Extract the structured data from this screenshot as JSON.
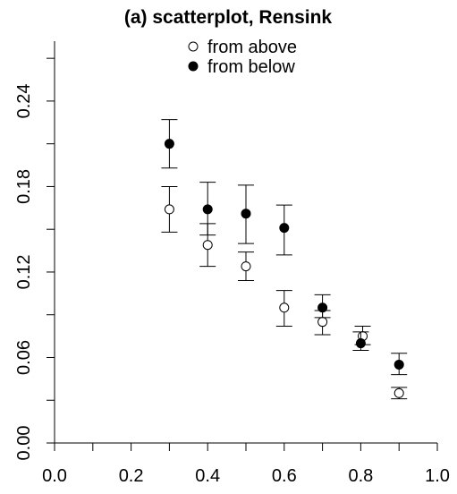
{
  "chart_data": {
    "type": "scatter",
    "title": "(a) scatterplot, Rensink",
    "xlabel": "",
    "ylabel": "",
    "xlim": [
      0.0,
      1.0
    ],
    "ylim": [
      0.0,
      0.3
    ],
    "x_ticks": [
      0.0,
      0.2,
      0.4,
      0.6,
      0.8,
      1.0
    ],
    "x_tick_labels": [
      "0.0",
      "0.2",
      "0.4",
      "0.6",
      "0.8",
      "1.0"
    ],
    "y_ticks": [
      0.0,
      0.06,
      0.12,
      0.18,
      0.24
    ],
    "y_tick_labels": [
      "0.00",
      "0.06",
      "0.12",
      "0.18",
      "0.24"
    ],
    "grid": false,
    "legend_position": "top-center",
    "series": [
      {
        "name": "from above",
        "marker": "open-circle",
        "color": "#000000",
        "points": [
          {
            "x": 0.3,
            "y": 0.164,
            "err_low": 0.148,
            "err_high": 0.18
          },
          {
            "x": 0.4,
            "y": 0.139,
            "err_low": 0.124,
            "err_high": 0.154
          },
          {
            "x": 0.5,
            "y": 0.124,
            "err_low": 0.114,
            "err_high": 0.134
          },
          {
            "x": 0.6,
            "y": 0.095,
            "err_low": 0.082,
            "err_high": 0.107
          },
          {
            "x": 0.7,
            "y": 0.085,
            "err_low": 0.076,
            "err_high": 0.093
          },
          {
            "x": 0.805,
            "y": 0.075,
            "err_low": 0.069,
            "err_high": 0.082
          },
          {
            "x": 0.9,
            "y": 0.035,
            "err_low": 0.031,
            "err_high": 0.039
          }
        ]
      },
      {
        "name": "from below",
        "marker": "filled-circle",
        "color": "#000000",
        "points": [
          {
            "x": 0.3,
            "y": 0.21,
            "err_low": 0.193,
            "err_high": 0.227
          },
          {
            "x": 0.4,
            "y": 0.164,
            "err_low": 0.146,
            "err_high": 0.183
          },
          {
            "x": 0.5,
            "y": 0.161,
            "err_low": 0.14,
            "err_high": 0.181
          },
          {
            "x": 0.6,
            "y": 0.151,
            "err_low": 0.132,
            "err_high": 0.167
          },
          {
            "x": 0.7,
            "y": 0.095,
            "err_low": 0.088,
            "err_high": 0.104
          },
          {
            "x": 0.8,
            "y": 0.07,
            "err_low": 0.065,
            "err_high": 0.078
          },
          {
            "x": 0.9,
            "y": 0.055,
            "err_low": 0.048,
            "err_high": 0.063
          }
        ]
      }
    ]
  }
}
